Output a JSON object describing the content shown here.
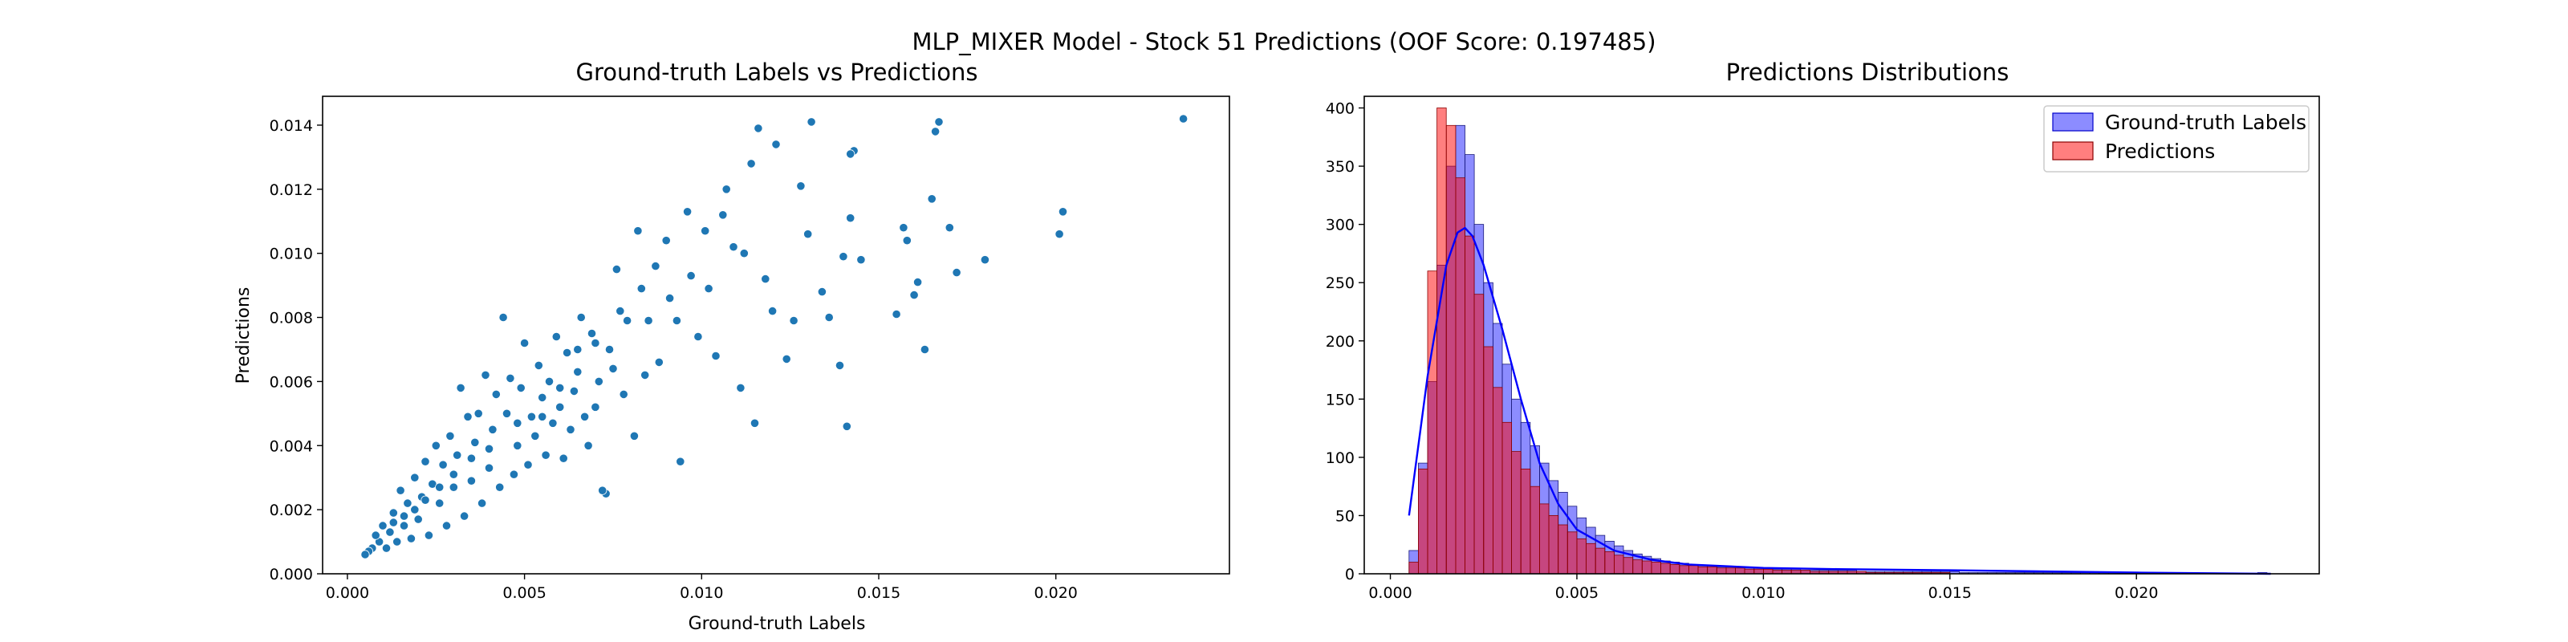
{
  "figure": {
    "suptitle": "MLP_MIXER Model - Stock 51 Predictions (OOF Score: 0.197485)"
  },
  "colors": {
    "scatter": "#1f77b4",
    "gt_fill": "#0000ff",
    "pred_fill": "#ff0000",
    "kde": "#0000ff",
    "pred_edge": "#8b0000"
  },
  "chart_data": [
    {
      "type": "scatter",
      "title": "Ground-truth Labels vs Predictions",
      "xlabel": "Ground-truth Labels",
      "ylabel": "Predictions",
      "xlim": [
        -0.0007,
        0.0249
      ],
      "ylim": [
        0.0,
        0.0149
      ],
      "xticks": [
        0.0,
        0.005,
        0.01,
        0.015,
        0.02
      ],
      "xtick_labels": [
        "0.000",
        "0.005",
        "0.010",
        "0.015",
        "0.020"
      ],
      "yticks": [
        0.0,
        0.002,
        0.004,
        0.006,
        0.008,
        0.01,
        0.012,
        0.014
      ],
      "ytick_labels": [
        "0.000",
        "0.002",
        "0.004",
        "0.006",
        "0.008",
        "0.010",
        "0.012",
        "0.014"
      ],
      "grid": false,
      "points": [
        [
          0.0236,
          0.0142
        ],
        [
          0.0202,
          0.0113
        ],
        [
          0.0201,
          0.0106
        ],
        [
          0.018,
          0.0098
        ],
        [
          0.0172,
          0.0094
        ],
        [
          0.017,
          0.0108
        ],
        [
          0.0167,
          0.0141
        ],
        [
          0.0166,
          0.0138
        ],
        [
          0.0165,
          0.0117
        ],
        [
          0.0163,
          0.007
        ],
        [
          0.0161,
          0.0091
        ],
        [
          0.016,
          0.0087
        ],
        [
          0.0158,
          0.0104
        ],
        [
          0.0157,
          0.0108
        ],
        [
          0.0155,
          0.0081
        ],
        [
          0.0145,
          0.0098
        ],
        [
          0.0142,
          0.0111
        ],
        [
          0.0143,
          0.0132
        ],
        [
          0.0142,
          0.0131
        ],
        [
          0.0141,
          0.0046
        ],
        [
          0.014,
          0.0099
        ],
        [
          0.0139,
          0.0065
        ],
        [
          0.0136,
          0.008
        ],
        [
          0.0134,
          0.0088
        ],
        [
          0.0131,
          0.0141
        ],
        [
          0.013,
          0.0106
        ],
        [
          0.0128,
          0.0121
        ],
        [
          0.0126,
          0.0079
        ],
        [
          0.0124,
          0.0067
        ],
        [
          0.0121,
          0.0134
        ],
        [
          0.012,
          0.0082
        ],
        [
          0.0118,
          0.0092
        ],
        [
          0.0116,
          0.0139
        ],
        [
          0.0115,
          0.0047
        ],
        [
          0.0114,
          0.0128
        ],
        [
          0.0112,
          0.01
        ],
        [
          0.0111,
          0.0058
        ],
        [
          0.0109,
          0.0102
        ],
        [
          0.0107,
          0.012
        ],
        [
          0.0106,
          0.0112
        ],
        [
          0.0104,
          0.0068
        ],
        [
          0.0102,
          0.0089
        ],
        [
          0.0101,
          0.0107
        ],
        [
          0.0099,
          0.0074
        ],
        [
          0.0097,
          0.0093
        ],
        [
          0.0096,
          0.0113
        ],
        [
          0.0094,
          0.0035
        ],
        [
          0.0093,
          0.0079
        ],
        [
          0.0091,
          0.0086
        ],
        [
          0.009,
          0.0104
        ],
        [
          0.0088,
          0.0066
        ],
        [
          0.0087,
          0.0096
        ],
        [
          0.0085,
          0.0079
        ],
        [
          0.0084,
          0.0062
        ],
        [
          0.0083,
          0.0089
        ],
        [
          0.0082,
          0.0107
        ],
        [
          0.0081,
          0.0043
        ],
        [
          0.0079,
          0.0079
        ],
        [
          0.0078,
          0.0056
        ],
        [
          0.0077,
          0.0082
        ],
        [
          0.0076,
          0.0095
        ],
        [
          0.0075,
          0.0064
        ],
        [
          0.0074,
          0.007
        ],
        [
          0.0073,
          0.0025
        ],
        [
          0.0072,
          0.0026
        ],
        [
          0.0071,
          0.006
        ],
        [
          0.007,
          0.0052
        ],
        [
          0.0069,
          0.0075
        ],
        [
          0.0068,
          0.004
        ],
        [
          0.0067,
          0.0049
        ],
        [
          0.0066,
          0.008
        ],
        [
          0.0065,
          0.0063
        ],
        [
          0.0064,
          0.0057
        ],
        [
          0.0063,
          0.0045
        ],
        [
          0.0062,
          0.0069
        ],
        [
          0.0061,
          0.0036
        ],
        [
          0.006,
          0.0052
        ],
        [
          0.0059,
          0.0074
        ],
        [
          0.0058,
          0.0047
        ],
        [
          0.0057,
          0.006
        ],
        [
          0.0056,
          0.0037
        ],
        [
          0.0055,
          0.0055
        ],
        [
          0.0054,
          0.0065
        ],
        [
          0.0053,
          0.0043
        ],
        [
          0.0052,
          0.0049
        ],
        [
          0.0051,
          0.0034
        ],
        [
          0.005,
          0.0072
        ],
        [
          0.0049,
          0.0058
        ],
        [
          0.0048,
          0.004
        ],
        [
          0.0047,
          0.0031
        ],
        [
          0.0046,
          0.0061
        ],
        [
          0.0045,
          0.005
        ],
        [
          0.0044,
          0.008
        ],
        [
          0.0043,
          0.0027
        ],
        [
          0.0042,
          0.0056
        ],
        [
          0.0041,
          0.0045
        ],
        [
          0.004,
          0.0033
        ],
        [
          0.0039,
          0.0062
        ],
        [
          0.0038,
          0.0022
        ],
        [
          0.0037,
          0.005
        ],
        [
          0.0036,
          0.0041
        ],
        [
          0.0035,
          0.0029
        ],
        [
          0.0034,
          0.0049
        ],
        [
          0.0033,
          0.0018
        ],
        [
          0.0032,
          0.0058
        ],
        [
          0.0031,
          0.0037
        ],
        [
          0.003,
          0.0027
        ],
        [
          0.0029,
          0.0043
        ],
        [
          0.0028,
          0.0015
        ],
        [
          0.0027,
          0.0034
        ],
        [
          0.0026,
          0.0022
        ],
        [
          0.0025,
          0.004
        ],
        [
          0.0024,
          0.0028
        ],
        [
          0.0023,
          0.0012
        ],
        [
          0.0022,
          0.0035
        ],
        [
          0.0021,
          0.0024
        ],
        [
          0.002,
          0.0017
        ],
        [
          0.0019,
          0.003
        ],
        [
          0.0018,
          0.0011
        ],
        [
          0.0017,
          0.0022
        ],
        [
          0.0016,
          0.0015
        ],
        [
          0.0015,
          0.0026
        ],
        [
          0.0014,
          0.001
        ],
        [
          0.0013,
          0.0019
        ],
        [
          0.0012,
          0.0013
        ],
        [
          0.0011,
          0.0008
        ],
        [
          0.001,
          0.0015
        ],
        [
          0.0009,
          0.001
        ],
        [
          0.0008,
          0.0012
        ],
        [
          0.0007,
          0.0008
        ],
        [
          0.0006,
          0.0007
        ],
        [
          0.0005,
          0.0006
        ],
        [
          0.0048,
          0.0047
        ],
        [
          0.004,
          0.0039
        ],
        [
          0.0035,
          0.0036
        ],
        [
          0.003,
          0.0031
        ],
        [
          0.0026,
          0.0027
        ],
        [
          0.0022,
          0.0023
        ],
        [
          0.0019,
          0.002
        ],
        [
          0.0016,
          0.0018
        ],
        [
          0.0013,
          0.0016
        ],
        [
          0.0055,
          0.0049
        ],
        [
          0.006,
          0.0058
        ],
        [
          0.0065,
          0.007
        ],
        [
          0.007,
          0.0072
        ]
      ]
    },
    {
      "type": "histogram",
      "title": "Predictions Distributions",
      "xlabel": "",
      "ylabel": "",
      "xlim": [
        -0.0007,
        0.0249
      ],
      "ylim": [
        0,
        410
      ],
      "xticks": [
        0.0,
        0.005,
        0.01,
        0.015,
        0.02
      ],
      "xtick_labels": [
        "0.000",
        "0.005",
        "0.010",
        "0.015",
        "0.020"
      ],
      "yticks": [
        0,
        50,
        100,
        150,
        200,
        250,
        300,
        350,
        400
      ],
      "ytick_labels": [
        "0",
        "50",
        "100",
        "150",
        "200",
        "250",
        "300",
        "350",
        "400"
      ],
      "legend_position": "top-right",
      "series": [
        {
          "name": "Ground-truth Labels",
          "bin_start": 0.0005,
          "bin_width": 0.00025,
          "counts": [
            20,
            95,
            165,
            265,
            350,
            385,
            360,
            300,
            250,
            215,
            180,
            150,
            130,
            110,
            95,
            80,
            70,
            58,
            48,
            40,
            33,
            28,
            24,
            20,
            17,
            15,
            13,
            11,
            10,
            9,
            8,
            7,
            7,
            6,
            6,
            5,
            5,
            5,
            4,
            4,
            4,
            4,
            3,
            3,
            3,
            3,
            3,
            3,
            2,
            2,
            2,
            2,
            2,
            2,
            2,
            2,
            2,
            2,
            2,
            1,
            1,
            1,
            1,
            1,
            1,
            1,
            1,
            1,
            1,
            1,
            1,
            1,
            1,
            1,
            1,
            1,
            1,
            1,
            1,
            0,
            0,
            0,
            0,
            0,
            0,
            0,
            0,
            0,
            0,
            0,
            0,
            1
          ]
        },
        {
          "name": "Predictions",
          "bin_start": 0.0005,
          "bin_width": 0.00025,
          "counts": [
            10,
            90,
            260,
            400,
            385,
            340,
            290,
            240,
            195,
            160,
            130,
            105,
            90,
            75,
            60,
            50,
            42,
            36,
            30,
            26,
            22,
            19,
            16,
            14,
            12,
            11,
            10,
            9,
            8,
            7,
            7,
            6,
            6,
            5,
            5,
            5,
            4,
            4,
            4,
            3,
            3,
            3,
            3,
            2,
            2,
            2,
            2,
            2,
            2,
            1,
            1,
            1,
            1,
            1,
            1,
            1,
            1,
            1,
            0,
            0,
            0,
            0,
            0,
            0
          ]
        }
      ],
      "kde": {
        "x": [
          0.0005,
          0.001,
          0.0015,
          0.0018,
          0.002,
          0.0022,
          0.0025,
          0.003,
          0.0035,
          0.004,
          0.0045,
          0.005,
          0.006,
          0.007,
          0.008,
          0.01,
          0.012,
          0.015,
          0.02,
          0.0236
        ],
        "y": [
          50,
          170,
          265,
          293,
          297,
          290,
          265,
          210,
          150,
          95,
          60,
          38,
          20,
          12,
          8,
          5,
          4,
          3,
          1,
          0
        ]
      }
    }
  ]
}
